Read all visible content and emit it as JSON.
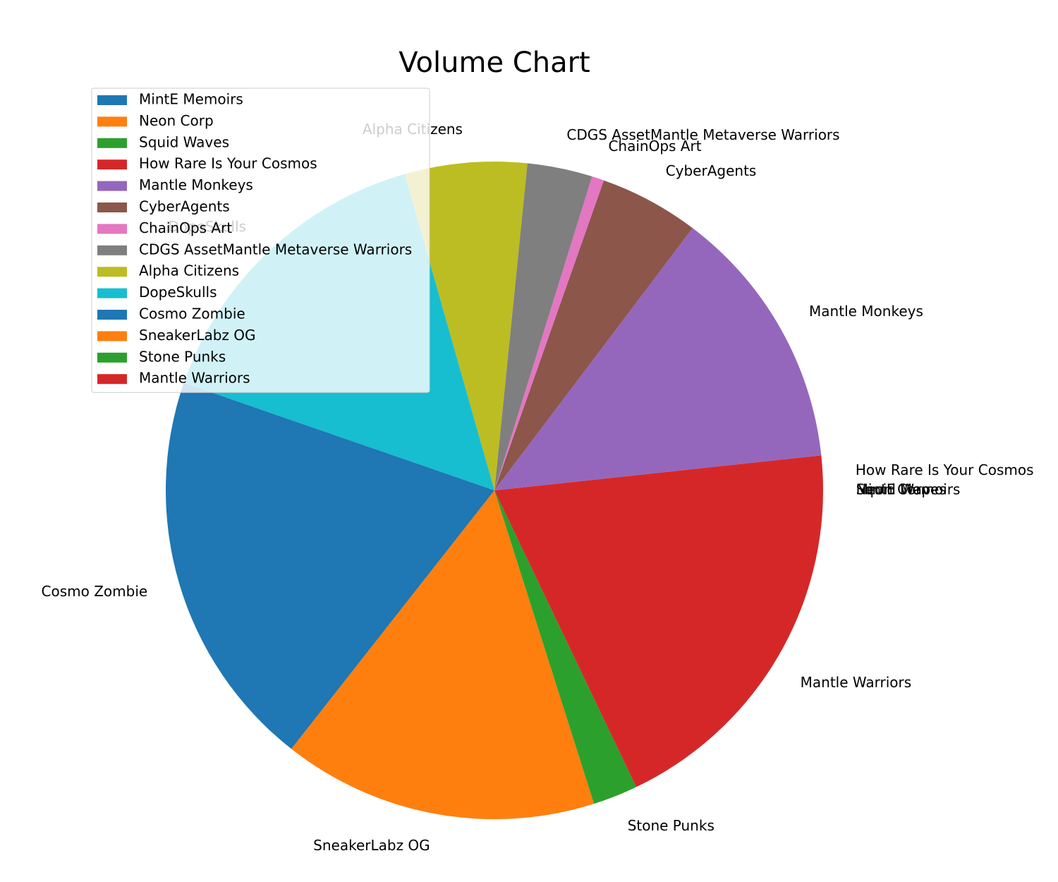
{
  "chart_data": {
    "type": "pie",
    "title": "Volume Chart",
    "legend_position": "upper-left",
    "start_angle_deg": 0,
    "direction": "counterclockwise",
    "slices": [
      {
        "label": "MintE Memoirs",
        "value": 0.0,
        "color": "#1f77b4"
      },
      {
        "label": "Neon Corp",
        "value": 0.0,
        "color": "#ff7f0e"
      },
      {
        "label": "Squid Waves",
        "value": 0.0,
        "color": "#2ca02c"
      },
      {
        "label": "How Rare Is Your Cosmos",
        "value": 1.7,
        "color": "#d62728"
      },
      {
        "label": "Mantle Monkeys",
        "value": 13.0,
        "color": "#9467bd"
      },
      {
        "label": "CyberAgents",
        "value": 4.9,
        "color": "#8c564b"
      },
      {
        "label": "ChainOps Art",
        "value": 0.6,
        "color": "#e377c2"
      },
      {
        "label": "CDGS AssetMantle Metaverse Warriors",
        "value": 3.2,
        "color": "#7f7f7f"
      },
      {
        "label": "Alpha Citizens",
        "value": 6.0,
        "color": "#bcbd22"
      },
      {
        "label": "DopeSkulls",
        "value": 15.3,
        "color": "#17becf"
      },
      {
        "label": "Cosmo Zombie",
        "value": 19.7,
        "color": "#1f77b4"
      },
      {
        "label": "SneakerLabz OG",
        "value": 15.5,
        "color": "#ff7f0e"
      },
      {
        "label": "Stone Punks",
        "value": 2.2,
        "color": "#2ca02c"
      },
      {
        "label": "Mantle Warriors",
        "value": 17.9,
        "color": "#d62728"
      }
    ]
  }
}
